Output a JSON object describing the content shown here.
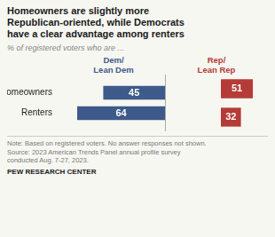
{
  "chart_data": {
    "type": "bar",
    "orientation": "horizontal",
    "title": "Homeowners are slightly more\nRepublican-oriented, while Democrats\nhave a clear advantage among renters",
    "subtitle": "% of registered voters who are ...",
    "categories": [
      "Homeowners",
      "Renters"
    ],
    "series": [
      {
        "name": "Dem/\nLean Dem",
        "color": "#3d5a8a",
        "values": [
          45,
          64
        ]
      },
      {
        "name": "Rep/\nLean Rep",
        "color": "#b53c36",
        "values": [
          51,
          32
        ]
      }
    ],
    "xlim": [
      0,
      75
    ],
    "grid": false,
    "data_labels": true,
    "tick_labels": "y",
    "annotations": [
      "Note: Based on registered voters. No answer responses not shown.\nSource: 2023 American Trends Panel annual profile survey\nconducted Aug. 7-27, 2023.",
      "PEW RESEARCH CENTER"
    ]
  }
}
